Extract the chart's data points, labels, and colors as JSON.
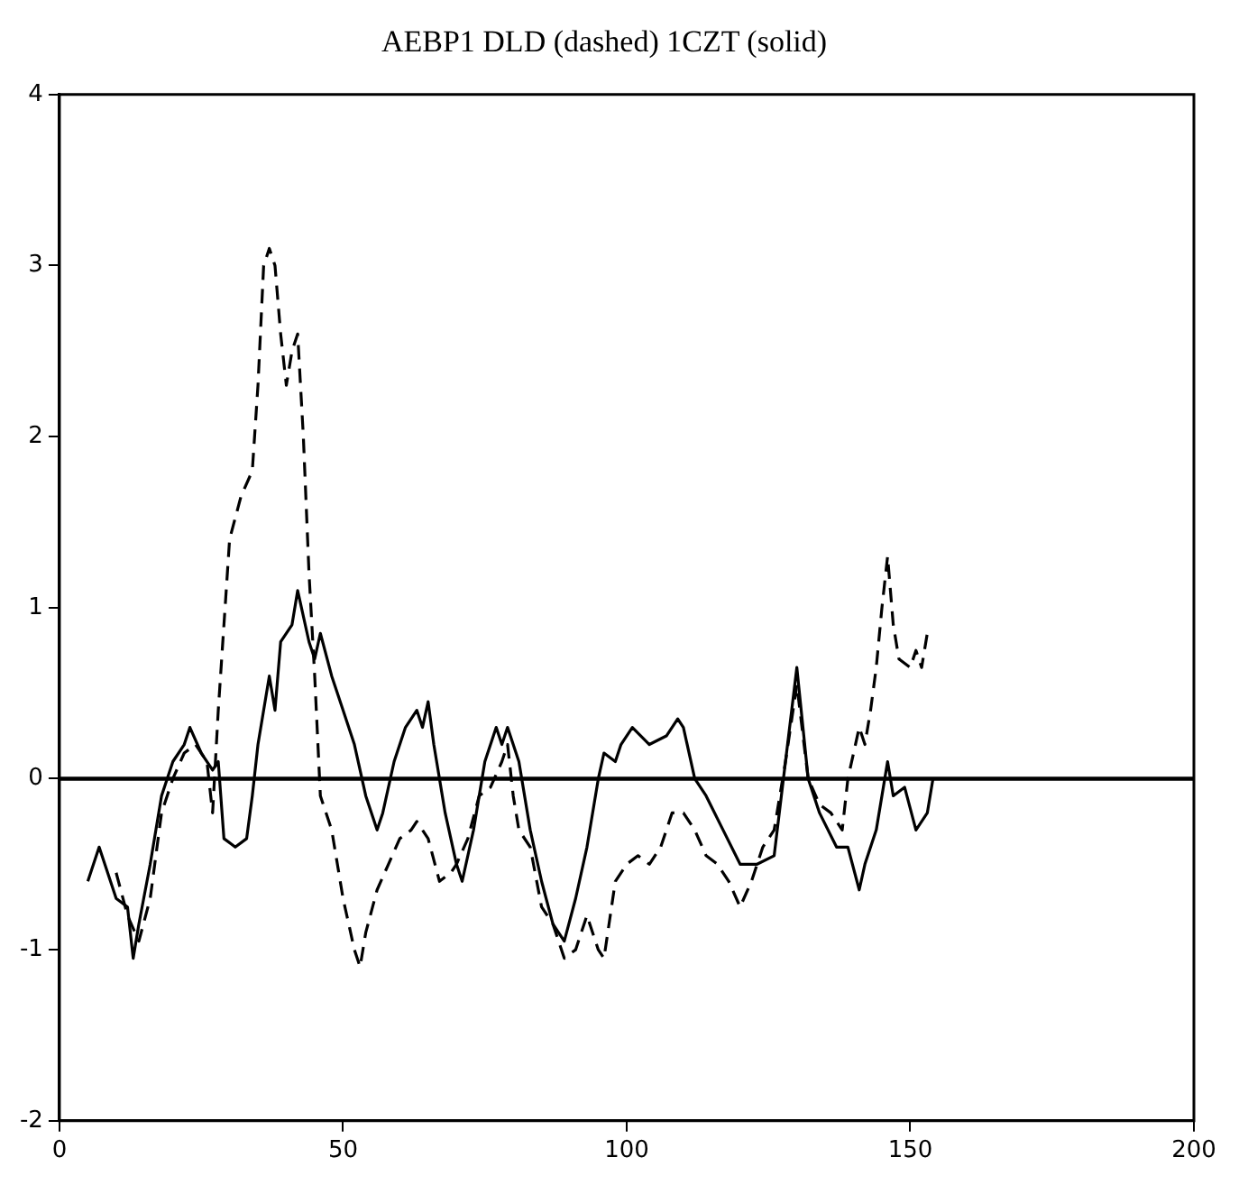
{
  "chart_data": {
    "type": "line",
    "title": "AEBP1 DLD (dashed) 1CZT (solid)",
    "xlim": [
      0,
      200
    ],
    "xticks": [
      0,
      50,
      100,
      150,
      200
    ],
    "ylim": [
      -2,
      4
    ],
    "yticks": [
      -2,
      -1,
      0,
      1,
      2,
      3,
      4
    ],
    "grid": false,
    "legend": false,
    "marker": "none",
    "ref_lines": [
      {
        "axis": "y",
        "value": 0,
        "color": "#000000"
      }
    ],
    "series": [
      {
        "color": "#000000",
        "line_style": "dashed",
        "x": [
          10,
          12,
          14,
          16,
          18,
          20,
          22,
          24,
          26,
          27,
          28,
          30,
          32,
          34,
          35,
          36,
          37,
          38,
          39,
          40,
          41,
          42,
          43,
          44,
          45,
          46,
          48,
          50,
          52,
          53,
          54,
          56,
          58,
          60,
          62,
          63,
          65,
          67,
          69,
          70,
          72,
          74,
          76,
          78,
          79,
          80,
          81,
          83,
          85,
          87,
          89,
          91,
          93,
          95,
          96,
          98,
          100,
          102,
          104,
          106,
          108,
          110,
          112,
          114,
          116,
          118,
          120,
          122,
          124,
          126,
          128,
          130,
          132,
          134,
          136,
          138,
          139,
          141,
          142,
          143,
          144,
          145,
          146,
          147,
          148,
          150,
          151,
          152,
          153
        ],
        "values": [
          -0.55,
          -0.8,
          -0.95,
          -0.7,
          -0.2,
          0,
          0.15,
          0.2,
          0.1,
          -0.2,
          0.4,
          1.4,
          1.65,
          1.8,
          2.3,
          3,
          3.1,
          3,
          2.6,
          2.3,
          2.5,
          2.6,
          2,
          1.2,
          0.6,
          -0.1,
          -0.3,
          -0.7,
          -1,
          -1.1,
          -0.9,
          -0.65,
          -0.5,
          -0.35,
          -0.3,
          -0.25,
          -0.35,
          -0.6,
          -0.55,
          -0.5,
          -0.35,
          -0.1,
          -0.05,
          0.1,
          0.2,
          -0.1,
          -0.3,
          -0.4,
          -0.75,
          -0.85,
          -1.05,
          -1,
          -0.8,
          -1,
          -1.05,
          -0.6,
          -0.5,
          -0.45,
          -0.5,
          -0.4,
          -0.2,
          -0.2,
          -0.3,
          -0.45,
          -0.5,
          -0.6,
          -0.75,
          -0.6,
          -0.4,
          -0.3,
          0.1,
          0.55,
          0,
          -0.15,
          -0.2,
          -0.3,
          0,
          0.3,
          0.2,
          0.4,
          0.65,
          1,
          1.3,
          0.9,
          0.7,
          0.65,
          0.75,
          0.65,
          0.85
        ]
      },
      {
        "color": "#000000",
        "line_style": "solid",
        "x": [
          5,
          7,
          9,
          10,
          12,
          13,
          14,
          16,
          18,
          20,
          22,
          23,
          25,
          27,
          28,
          29,
          31,
          33,
          34,
          35,
          37,
          38,
          39,
          41,
          42,
          44,
          45,
          46,
          48,
          50,
          52,
          54,
          56,
          57,
          59,
          61,
          63,
          64,
          65,
          66,
          68,
          70,
          71,
          73,
          75,
          77,
          78,
          79,
          81,
          83,
          85,
          87,
          89,
          91,
          93,
          95,
          96,
          98,
          99,
          101,
          104,
          107,
          109,
          110,
          112,
          114,
          117,
          120,
          123,
          126,
          128,
          130,
          132,
          134,
          137,
          139,
          141,
          142,
          144,
          146,
          147,
          149,
          151,
          153,
          154
        ],
        "values": [
          -0.6,
          -0.4,
          -0.6,
          -0.7,
          -0.75,
          -1.05,
          -0.85,
          -0.5,
          -0.1,
          0.1,
          0.2,
          0.3,
          0.15,
          0.05,
          0.1,
          -0.35,
          -0.4,
          -0.35,
          -0.1,
          0.2,
          0.6,
          0.4,
          0.8,
          0.9,
          1.1,
          0.8,
          0.7,
          0.85,
          0.6,
          0.4,
          0.2,
          -0.1,
          -0.3,
          -0.2,
          0.1,
          0.3,
          0.4,
          0.3,
          0.45,
          0.2,
          -0.2,
          -0.5,
          -0.6,
          -0.3,
          0.1,
          0.3,
          0.2,
          0.3,
          0.1,
          -0.3,
          -0.6,
          -0.85,
          -0.95,
          -0.7,
          -0.4,
          0,
          0.15,
          0.1,
          0.2,
          0.3,
          0.2,
          0.25,
          0.35,
          0.3,
          0,
          -0.1,
          -0.3,
          -0.5,
          -0.5,
          -0.45,
          0.1,
          0.65,
          0,
          -0.2,
          -0.4,
          -0.4,
          -0.65,
          -0.5,
          -0.3,
          0.1,
          -0.1,
          -0.05,
          -0.3,
          -0.2,
          0
        ]
      }
    ]
  }
}
